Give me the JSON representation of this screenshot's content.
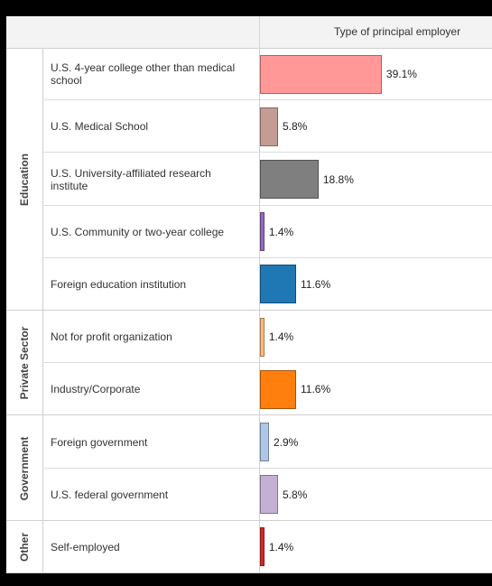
{
  "header": {
    "column_label": "Type of principal employer"
  },
  "chart_data": {
    "type": "bar",
    "orientation": "horizontal",
    "xlim": [
      0,
      100
    ],
    "groups": [
      {
        "name": "Education",
        "rows": [
          {
            "category": "U.S. 4-year college other than medical school",
            "value": 39.1,
            "label": "39.1%",
            "color": "#ff9896"
          },
          {
            "category": "U.S. Medical School",
            "value": 5.8,
            "label": "5.8%",
            "color": "#c49c94"
          },
          {
            "category": "U.S. University-affiliated research institute",
            "value": 18.8,
            "label": "18.8%",
            "color": "#7f7f7f"
          },
          {
            "category": "U.S. Community or two-year college",
            "value": 1.4,
            "label": "1.4%",
            "color": "#9467bd"
          },
          {
            "category": "Foreign education institution",
            "value": 11.6,
            "label": "11.6%",
            "color": "#1f77b4"
          }
        ]
      },
      {
        "name": "Private Sector",
        "rows": [
          {
            "category": "Not for profit organization",
            "value": 1.4,
            "label": "1.4%",
            "color": "#ffbb78"
          },
          {
            "category": "Industry/Corporate",
            "value": 11.6,
            "label": "11.6%",
            "color": "#ff7f0e"
          }
        ]
      },
      {
        "name": "Government",
        "rows": [
          {
            "category": "Foreign government",
            "value": 2.9,
            "label": "2.9%",
            "color": "#aec7e8"
          },
          {
            "category": "U.S. federal government",
            "value": 5.8,
            "label": "5.8%",
            "color": "#c5b0d5"
          }
        ]
      },
      {
        "name": "Other",
        "rows": [
          {
            "category": "Self-employed",
            "value": 1.4,
            "label": "1.4%",
            "color": "#d62728"
          }
        ]
      }
    ]
  }
}
